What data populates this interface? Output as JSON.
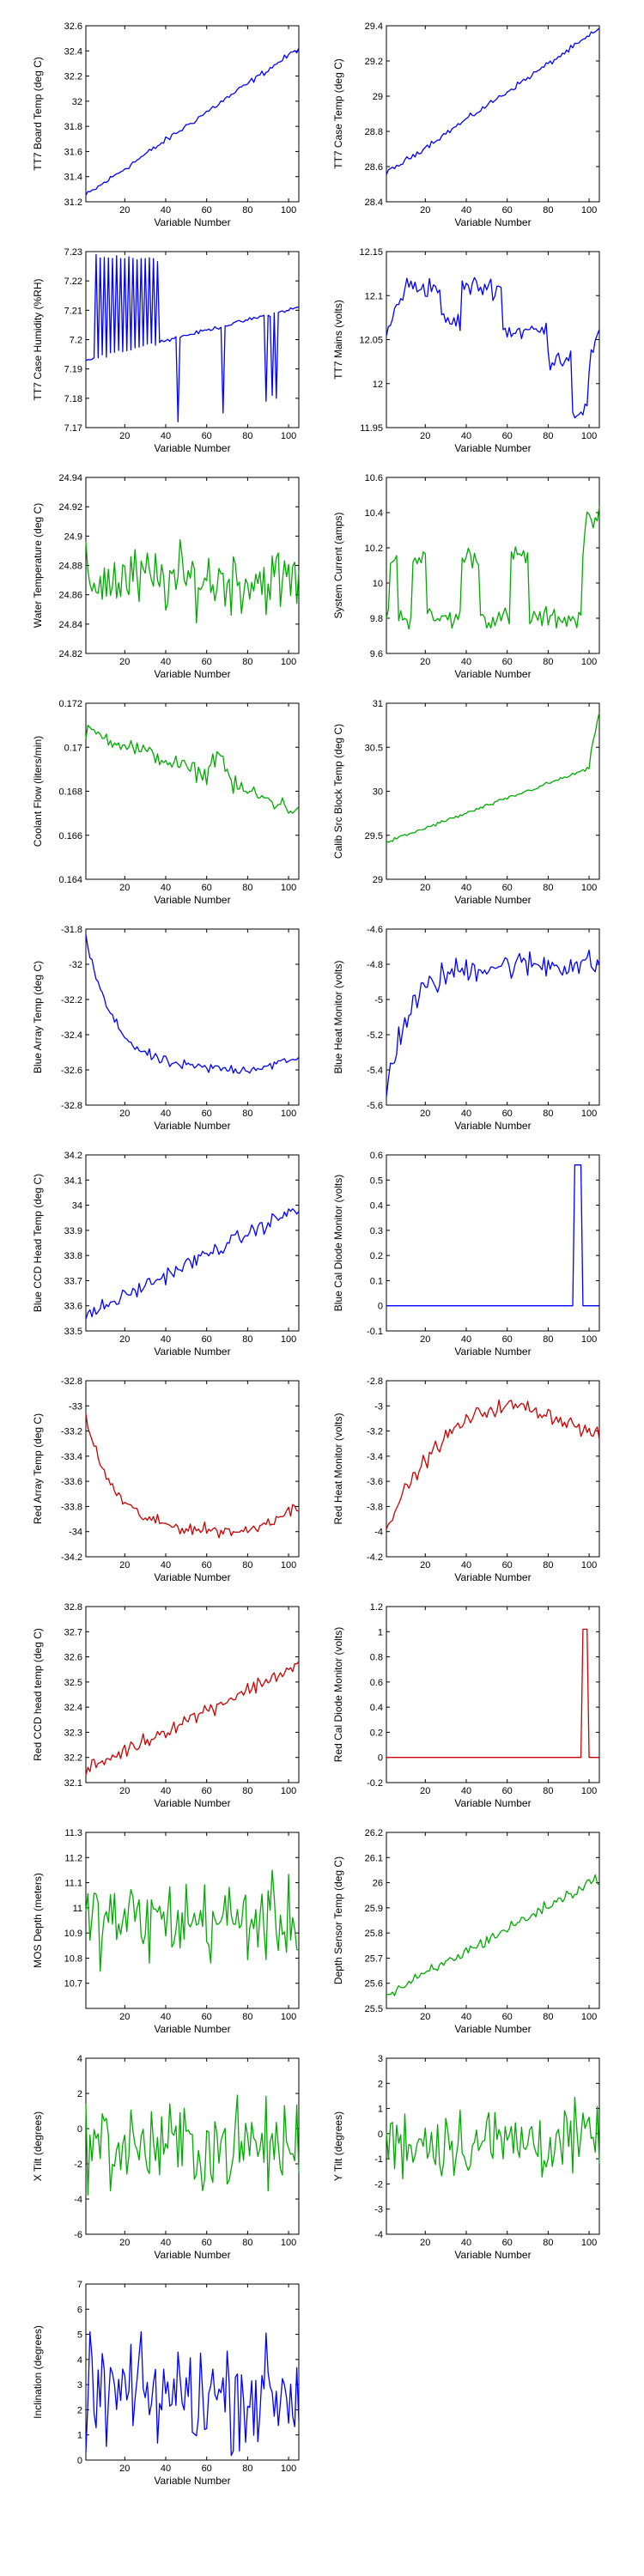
{
  "figure": {
    "layout": "grid",
    "columns": 2,
    "rows": 11
  },
  "colors": {
    "blue": "#0000ff",
    "green": "#00aa00",
    "red": "#cc0000",
    "axis": "#000000",
    "background": "#ffffff"
  },
  "chart_data": [
    {
      "type": "line",
      "color": "blue",
      "shape": "linear_noisy",
      "start": 31.25,
      "end": 32.42,
      "noise": 0.012,
      "ylabel": "TT7 Board Temp (deg C)",
      "xlabel": "Variable Number",
      "xlim": [
        1,
        105
      ],
      "ylim": [
        31.2,
        32.6
      ],
      "xticks": [
        20,
        40,
        60,
        80,
        100
      ],
      "yticks": [
        31.2,
        31.4,
        31.6,
        31.8,
        32,
        32.2,
        32.4,
        32.6
      ],
      "yticklabels": [
        "31.2",
        "31.4",
        "31.6",
        "31.8",
        "32",
        "32.2",
        "32.4",
        "32.6"
      ]
    },
    {
      "type": "line",
      "color": "blue",
      "shape": "linear_noisy",
      "start": 28.56,
      "end": 29.38,
      "noise": 0.008,
      "ylabel": "TT7 Case Temp (deg C)",
      "xlabel": "Variable Number",
      "xlim": [
        1,
        105
      ],
      "ylim": [
        28.4,
        29.4
      ],
      "xticks": [
        20,
        40,
        60,
        80,
        100
      ],
      "yticks": [
        28.4,
        28.6,
        28.8,
        29,
        29.2,
        29.4
      ],
      "yticklabels": [
        "28.4",
        "28.6",
        "28.8",
        "29",
        "29.2",
        "29.4"
      ]
    },
    {
      "type": "line",
      "color": "blue",
      "shape": "humidity",
      "ylabel": "TT7 Case Humidity (%RH)",
      "xlabel": "Variable Number",
      "xlim": [
        1,
        105
      ],
      "ylim": [
        7.17,
        7.23
      ],
      "xticks": [
        20,
        40,
        60,
        80,
        100
      ],
      "yticks": [
        7.17,
        7.18,
        7.19,
        7.2,
        7.21,
        7.22,
        7.23
      ],
      "yticklabels": [
        "7.17",
        "7.18",
        "7.19",
        "7.2",
        "7.21",
        "7.22",
        "7.23"
      ]
    },
    {
      "type": "line",
      "color": "blue",
      "shape": "mains",
      "ylabel": "TT7 Mains  (volts)",
      "xlabel": "Variable Number",
      "xlim": [
        1,
        105
      ],
      "ylim": [
        11.95,
        12.15
      ],
      "xticks": [
        20,
        40,
        60,
        80,
        100
      ],
      "yticks": [
        11.95,
        12,
        12.05,
        12.1,
        12.15
      ],
      "yticklabels": [
        "11.95",
        "12",
        "12.05",
        "12.1",
        "12.15"
      ]
    },
    {
      "type": "line",
      "color": "green",
      "shape": "noise",
      "mean": 24.87,
      "amp": 0.014,
      "ylabel": "Water Temperature (deg C)",
      "xlabel": "Variable Number",
      "xlim": [
        1,
        105
      ],
      "ylim": [
        24.82,
        24.94
      ],
      "xticks": [
        20,
        40,
        60,
        80,
        100
      ],
      "yticks": [
        24.82,
        24.84,
        24.86,
        24.88,
        24.9,
        24.92,
        24.94
      ],
      "yticklabels": [
        "24.82",
        "24.84",
        "24.86",
        "24.88",
        "24.9",
        "24.92",
        "24.94"
      ]
    },
    {
      "type": "line",
      "color": "green",
      "shape": "current",
      "ylabel": "System Current (amps)",
      "xlabel": "Variable Number",
      "xlim": [
        1,
        105
      ],
      "ylim": [
        9.6,
        10.6
      ],
      "xticks": [
        20,
        40,
        60,
        80,
        100
      ],
      "yticks": [
        9.6,
        9.8,
        10,
        10.2,
        10.4,
        10.6
      ],
      "yticklabels": [
        "9.6",
        "9.8",
        "10",
        "10.2",
        "10.4",
        "10.6"
      ]
    },
    {
      "type": "line",
      "color": "green",
      "shape": "coolant",
      "ylabel": "Coolant Flow (liters/min)",
      "xlabel": "Variable Number",
      "xlim": [
        1,
        105
      ],
      "ylim": [
        0.164,
        0.172
      ],
      "xticks": [
        20,
        40,
        60,
        80,
        100
      ],
      "yticks": [
        0.164,
        0.166,
        0.168,
        0.17,
        0.172
      ],
      "yticklabels": [
        "0.164",
        "0.166",
        "0.168",
        "0.17",
        "0.172"
      ]
    },
    {
      "type": "line",
      "color": "green",
      "shape": "calib",
      "ylabel": "Calib Src Block Temp (deg C)",
      "xlabel": "Variable Number",
      "xlim": [
        1,
        105
      ],
      "ylim": [
        29,
        31
      ],
      "xticks": [
        20,
        40,
        60,
        80,
        100
      ],
      "yticks": [
        29,
        29.5,
        30,
        30.5,
        31
      ],
      "yticklabels": [
        "29",
        "29.5",
        "30",
        "30.5",
        "31"
      ]
    },
    {
      "type": "line",
      "color": "blue",
      "shape": "decay",
      "start": -31.85,
      "floor": -32.6,
      "tau": 14,
      "rise_end": 0.06,
      "noise": 0.015,
      "ylabel": "Blue Array Temp (deg C)",
      "xlabel": "Variable Number",
      "xlim": [
        1,
        105
      ],
      "ylim": [
        -32.8,
        -31.8
      ],
      "xticks": [
        20,
        40,
        60,
        80,
        100
      ],
      "yticks": [
        -32.8,
        -32.6,
        -32.4,
        -32.2,
        -32,
        -31.8
      ],
      "yticklabels": [
        "-32.8",
        "-32.6",
        "-32.4",
        "-32.2",
        "-32",
        "-31.8"
      ]
    },
    {
      "type": "line",
      "color": "blue",
      "shape": "rise",
      "start": -5.5,
      "plateau": -4.8,
      "tau": 12,
      "noise": 0.04,
      "ylabel": "Blue Heat Monitor (volts)",
      "xlabel": "Variable Number",
      "xlim": [
        1,
        105
      ],
      "ylim": [
        -5.6,
        -4.6
      ],
      "xticks": [
        20,
        40,
        60,
        80,
        100
      ],
      "yticks": [
        -5.6,
        -5.4,
        -5.2,
        -5,
        -4.8,
        -4.6
      ],
      "yticklabels": [
        "-5.6",
        "-5.4",
        "-5.2",
        "-5",
        "-4.8",
        "-4.6"
      ]
    },
    {
      "type": "line",
      "color": "blue",
      "shape": "linear_noisy",
      "start": 33.56,
      "end": 33.99,
      "noise": 0.015,
      "ylabel": "Blue CCD Head Temp (deg C)",
      "xlabel": "Variable Number",
      "xlim": [
        1,
        105
      ],
      "ylim": [
        33.5,
        34.2
      ],
      "xticks": [
        20,
        40,
        60,
        80,
        100
      ],
      "yticks": [
        33.5,
        33.6,
        33.7,
        33.8,
        33.9,
        34,
        34.1,
        34.2
      ],
      "yticklabels": [
        "33.5",
        "33.6",
        "33.7",
        "33.8",
        "33.9",
        "34",
        "34.1",
        "34.2"
      ]
    },
    {
      "type": "line",
      "color": "blue",
      "shape": "spike",
      "base": 0,
      "peak": 0.56,
      "spike_start": 93,
      "spike_end": 96,
      "ylabel": "Blue Cal Diode Monitor (volts)",
      "xlabel": "Variable Number",
      "xlim": [
        1,
        105
      ],
      "ylim": [
        -0.1,
        0.6
      ],
      "xticks": [
        20,
        40,
        60,
        80,
        100
      ],
      "yticks": [
        -0.1,
        0,
        0.1,
        0.2,
        0.3,
        0.4,
        0.5,
        0.6
      ],
      "yticklabels": [
        "-0.1",
        "0",
        "0.1",
        "0.2",
        "0.3",
        "0.4",
        "0.5",
        "0.6"
      ]
    },
    {
      "type": "line",
      "color": "red",
      "shape": "decay",
      "start": -33.1,
      "floor": -34.0,
      "tau": 14,
      "rise_end": 0.2,
      "noise": 0.025,
      "ylabel": "Red Array Temp (deg C)",
      "xlabel": "Variable Number",
      "xlim": [
        1,
        105
      ],
      "ylim": [
        -34.2,
        -32.8
      ],
      "xticks": [
        20,
        40,
        60,
        80,
        100
      ],
      "yticks": [
        -34.2,
        -34,
        -33.8,
        -33.6,
        -33.4,
        -33.2,
        -33,
        -32.8
      ],
      "yticklabels": [
        "-34.2",
        "-34",
        "-33.8",
        "-33.6",
        "-33.4",
        "-33.2",
        "-33",
        "-32.8"
      ]
    },
    {
      "type": "line",
      "color": "red",
      "shape": "arch",
      "start": -3.95,
      "peak": -3.0,
      "peak_x": 65,
      "end": -3.25,
      "noise": 0.03,
      "ylabel": "Red Heat Monitor (volts)",
      "xlabel": "Variable Number",
      "xlim": [
        1,
        105
      ],
      "ylim": [
        -4.2,
        -2.8
      ],
      "xticks": [
        20,
        40,
        60,
        80,
        100
      ],
      "yticks": [
        -4.2,
        -4,
        -3.8,
        -3.6,
        -3.4,
        -3.2,
        -3,
        -2.8
      ],
      "yticklabels": [
        "-4.2",
        "-4",
        "-3.8",
        "-3.6",
        "-3.4",
        "-3.2",
        "-3",
        "-2.8"
      ]
    },
    {
      "type": "line",
      "color": "red",
      "shape": "linear_noisy",
      "start": 32.15,
      "end": 32.57,
      "noise": 0.015,
      "ylabel": "Red CCD head temp (deg C)",
      "xlabel": "Variable Number",
      "xlim": [
        1,
        105
      ],
      "ylim": [
        32.1,
        32.8
      ],
      "xticks": [
        20,
        40,
        60,
        80,
        100
      ],
      "yticks": [
        32.1,
        32.2,
        32.3,
        32.4,
        32.5,
        32.6,
        32.7,
        32.8
      ],
      "yticklabels": [
        "32.1",
        "32.2",
        "32.3",
        "32.4",
        "32.5",
        "32.6",
        "32.7",
        "32.8"
      ]
    },
    {
      "type": "line",
      "color": "red",
      "shape": "spike",
      "base": 0,
      "peak": 1.02,
      "spike_start": 97,
      "spike_end": 99,
      "ylabel": "Red Cal Diode Monitor (volts)",
      "xlabel": "Variable Number",
      "xlim": [
        1,
        105
      ],
      "ylim": [
        -0.2,
        1.2
      ],
      "xticks": [
        20,
        40,
        60,
        80,
        100
      ],
      "yticks": [
        -0.2,
        0,
        0.2,
        0.4,
        0.6,
        0.8,
        1,
        1.2
      ],
      "yticklabels": [
        "-0.2",
        "0",
        "0.2",
        "0.4",
        "0.6",
        "0.8",
        "1",
        "1.2"
      ]
    },
    {
      "type": "line",
      "color": "green",
      "shape": "noise",
      "mean": 10.95,
      "amp": 0.1,
      "ylabel": "MOS Depth  (meters)",
      "xlabel": "Variable Number",
      "xlim": [
        1,
        105
      ],
      "ylim": [
        10.6,
        11.3
      ],
      "xticks": [
        20,
        40,
        60,
        80,
        100
      ],
      "yticks": [
        10.7,
        10.8,
        10.9,
        11,
        11.1,
        11.2,
        11.3
      ],
      "yticklabels": [
        "10.7",
        "10.8",
        "10.9",
        "11",
        "11.1",
        "11.2",
        "11.3"
      ]
    },
    {
      "type": "line",
      "color": "green",
      "shape": "linear_noisy",
      "start": 25.55,
      "end": 26.02,
      "noise": 0.012,
      "ylabel": "Depth Sensor Temp (deg C)",
      "xlabel": "Variable Number",
      "xlim": [
        1,
        105
      ],
      "ylim": [
        25.5,
        26.2
      ],
      "xticks": [
        20,
        40,
        60,
        80,
        100
      ],
      "yticks": [
        25.5,
        25.6,
        25.7,
        25.8,
        25.9,
        26,
        26.1,
        26.2
      ],
      "yticklabels": [
        "25.5",
        "25.6",
        "25.7",
        "25.8",
        "25.9",
        "26",
        "26.1",
        "26.2"
      ]
    },
    {
      "type": "line",
      "color": "green",
      "shape": "noise",
      "mean": -1.0,
      "amp": 1.6,
      "ylabel": "X Tilt  (degrees)",
      "xlabel": "Variable Number",
      "xlim": [
        1,
        105
      ],
      "ylim": [
        -6,
        4
      ],
      "xticks": [
        20,
        40,
        60,
        80,
        100
      ],
      "yticks": [
        -6,
        -4,
        -2,
        0,
        2,
        4
      ],
      "yticklabels": [
        "-6",
        "-4",
        "-2",
        "0",
        "2",
        "4"
      ]
    },
    {
      "type": "line",
      "color": "green",
      "shape": "noise",
      "mean": -0.3,
      "amp": 0.9,
      "ylabel": "Y Tilt  (degrees)",
      "xlabel": "Variable Number",
      "xlim": [
        1,
        105
      ],
      "ylim": [
        -4,
        3
      ],
      "xticks": [
        20,
        40,
        60,
        80,
        100
      ],
      "yticks": [
        -4,
        -3,
        -2,
        -1,
        0,
        1,
        2,
        3
      ],
      "yticklabels": [
        "-4",
        "-3",
        "-2",
        "-1",
        "0",
        "1",
        "2",
        "3"
      ]
    },
    {
      "type": "line",
      "color": "blue",
      "shape": "noise",
      "mean": 2.6,
      "amp": 1.3,
      "ylabel": "Inclination  (degrees)",
      "xlabel": "Variable Number",
      "xlim": [
        1,
        105
      ],
      "ylim": [
        0,
        7
      ],
      "xticks": [
        20,
        40,
        60,
        80,
        100
      ],
      "yticks": [
        0,
        1,
        2,
        3,
        4,
        5,
        6,
        7
      ],
      "yticklabels": [
        "0",
        "1",
        "2",
        "3",
        "4",
        "5",
        "6",
        "7"
      ]
    }
  ]
}
